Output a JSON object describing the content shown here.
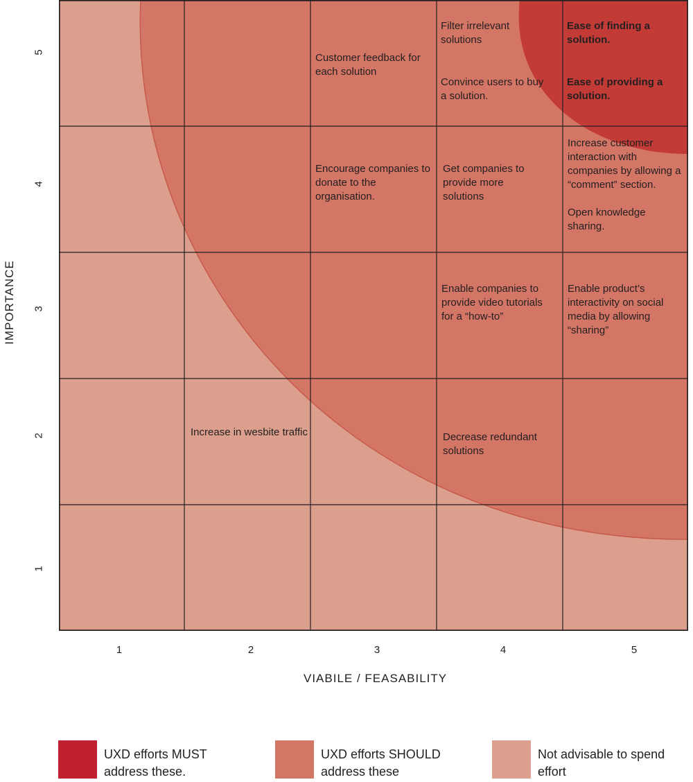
{
  "colors": {
    "must": "#c0212e",
    "should": "#d47666",
    "not_advisable": "#dd9f8d",
    "grid": "#231f20"
  },
  "axes": {
    "xlabel": "VIABILE / FEASABILITY",
    "ylabel": "IMPORTANCE",
    "x_ticks": [
      "1",
      "2",
      "3",
      "4",
      "5"
    ],
    "y_ticks": [
      "5",
      "4",
      "3",
      "2",
      "1"
    ]
  },
  "cells": {
    "r5c3": "Customer feedback for each solution",
    "r5c4a": "Filter irrelevant solutions",
    "r5c4b": "Convince users to buy a solution.",
    "r5c5a": "Ease of finding a solution.",
    "r5c5b": "Ease of providing a solution.",
    "r4c3": "Encourage companies to donate to the organisation.",
    "r4c4": "Get companies to provide more solutions",
    "r4c5a": "Increase customer interaction with companies by allowing a “comment” section.",
    "r4c5b": "Open knowledge sharing.",
    "r3c4": "Enable companies to provide video tutorials for a “how-to”",
    "r3c5": "Enable  product’s interactivity on social media by allowing “sharing”",
    "r2c2": "Increase in wesbite traffic",
    "r2c4": "Decrease redundant solutions"
  },
  "legend": {
    "must": "UXD efforts MUST address these.",
    "should": "UXD efforts SHOULD address these",
    "not_advisable": "Not advisable to spend effort"
  }
}
